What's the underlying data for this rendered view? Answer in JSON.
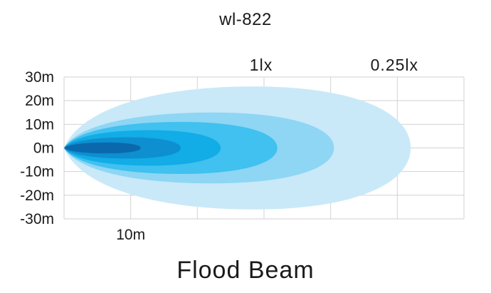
{
  "chart_data": {
    "type": "area",
    "title": "wl-822",
    "subtitle": "Flood Beam",
    "xlabel": "",
    "ylabel": "",
    "xlim": [
      0,
      60
    ],
    "ylim": [
      -30,
      30
    ],
    "x_tick_labels": [
      {
        "value": 10,
        "label": "10m"
      }
    ],
    "x_grid_values": [
      0,
      10,
      20,
      30,
      40,
      50,
      60
    ],
    "y_ticks": [
      {
        "value": 30,
        "label": "30m"
      },
      {
        "value": 20,
        "label": "20m"
      },
      {
        "value": 10,
        "label": "10m"
      },
      {
        "value": 0,
        "label": "0m"
      },
      {
        "value": -10,
        "label": "-10m"
      },
      {
        "value": -20,
        "label": "-20m"
      },
      {
        "value": -30,
        "label": "-30m"
      }
    ],
    "grid": true,
    "beam_contours": [
      {
        "reach": 52,
        "half_width": 26,
        "color": "#c9e9f8"
      },
      {
        "reach": 40.5,
        "half_width": 15,
        "color": "#8ed6f4"
      },
      {
        "reach": 32,
        "half_width": 11,
        "color": "#40c1ef"
      },
      {
        "reach": 23.5,
        "half_width": 7.5,
        "color": "#12ace6"
      },
      {
        "reach": 17.5,
        "half_width": 4.5,
        "color": "#0d8fd0"
      },
      {
        "reach": 11.5,
        "half_width": 2.3,
        "color": "#0a69ac"
      }
    ],
    "annotations": [
      {
        "label": "1lx",
        "x": 30
      },
      {
        "label": "0.25lx",
        "x": 50
      }
    ]
  }
}
